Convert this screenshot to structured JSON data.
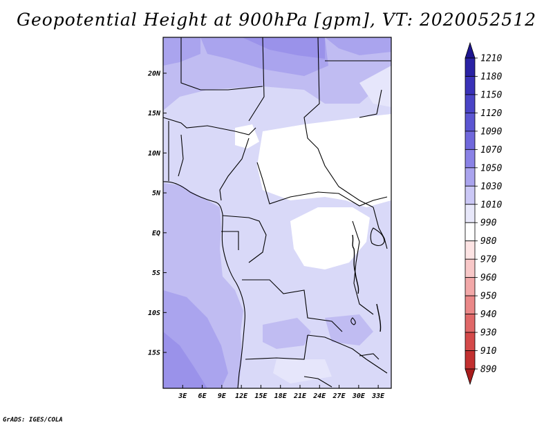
{
  "title": "Geopotential Height at 900hPa [gpm], VT: 2020052512",
  "credit": "GrADS: IGES/COLA",
  "map": {
    "region": "Central and Western Africa",
    "lat_labels": [
      "20N",
      "15N",
      "10N",
      "5N",
      "EQ",
      "5S",
      "10S",
      "15S"
    ],
    "lat_values": [
      20,
      15,
      10,
      5,
      0,
      -5,
      -10,
      -15
    ],
    "lon_labels": [
      "3E",
      "6E",
      "9E",
      "12E",
      "15E",
      "18E",
      "21E",
      "24E",
      "27E",
      "30E",
      "33E"
    ],
    "lon_values": [
      3,
      6,
      9,
      12,
      15,
      18,
      21,
      24,
      27,
      30,
      33
    ],
    "lon_range": [
      0,
      35
    ],
    "lat_range": [
      -19.5,
      24.5
    ],
    "field_levels_gpm": [
      1010,
      1030,
      1050,
      1070
    ],
    "level_colors": {
      "990": "#ffffff",
      "1010": "#e0e0f8",
      "1030": "#c8c8f4",
      "1050": "#b0aaf0",
      "1070": "#9a92ea"
    }
  },
  "colorbar": {
    "labels": [
      "1210",
      "1180",
      "1150",
      "1120",
      "1090",
      "1070",
      "1050",
      "1030",
      "1010",
      "990",
      "980",
      "970",
      "960",
      "950",
      "940",
      "930",
      "910",
      "890"
    ],
    "colors": [
      "#1e1690",
      "#2a22a4",
      "#3a32b8",
      "#4a44c6",
      "#5c56d2",
      "#7068dc",
      "#8a82e6",
      "#aaa4ee",
      "#cbc8f6",
      "#e8e8fa",
      "#ffffff",
      "#fde4e4",
      "#f8c8c8",
      "#f2a8a8",
      "#ea8888",
      "#e06868",
      "#d44a4a",
      "#c23030",
      "#a81c1c"
    ]
  }
}
